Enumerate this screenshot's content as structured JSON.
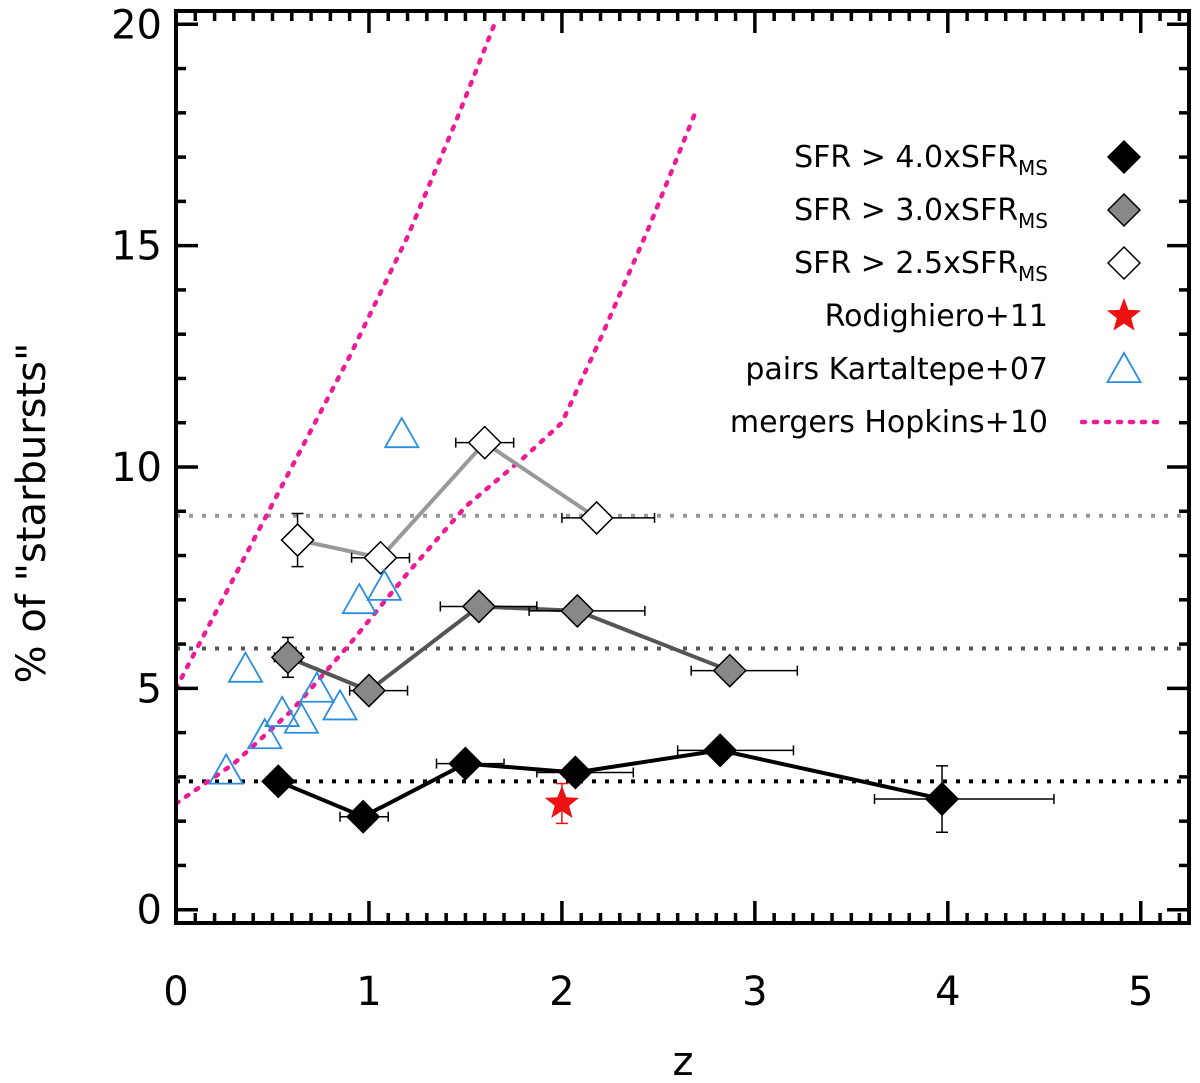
{
  "chart_data": {
    "type": "scatter",
    "xlabel": "z",
    "ylabel": "% of \"starbursts\"",
    "xlim": [
      0,
      5.25
    ],
    "ylim": [
      -0.3,
      20.3
    ],
    "x_ticks": [
      0,
      1,
      2,
      3,
      4,
      5
    ],
    "y_ticks": [
      0,
      5,
      10,
      15,
      20
    ],
    "legend_position": "top-right",
    "reference_lines": [
      {
        "y": 2.9,
        "color": "#000000"
      },
      {
        "y": 5.9,
        "color": "#555555"
      },
      {
        "y": 8.9,
        "color": "#999999"
      }
    ],
    "series": [
      {
        "name": "SFR > 4.0xSFR",
        "name_sub": "MS",
        "marker": "diamond",
        "fill": "#000000",
        "line_color": "#000000",
        "points": [
          {
            "x": 0.53,
            "y": 2.9,
            "xerr": [
              0.0,
              0.0
            ],
            "yerr": [
              0.0,
              0.0
            ]
          },
          {
            "x": 0.97,
            "y": 2.1,
            "xerr": [
              0.12,
              0.13
            ],
            "yerr": [
              0.0,
              0.0
            ]
          },
          {
            "x": 1.5,
            "y": 3.3,
            "xerr": [
              0.15,
              0.2
            ],
            "yerr": [
              0.0,
              0.0
            ]
          },
          {
            "x": 2.07,
            "y": 3.1,
            "xerr": [
              0.2,
              0.3
            ],
            "yerr": [
              0.0,
              0.0
            ]
          },
          {
            "x": 2.82,
            "y": 3.6,
            "xerr": [
              0.22,
              0.38
            ],
            "yerr": [
              0.0,
              0.0
            ]
          },
          {
            "x": 3.97,
            "y": 2.5,
            "xerr": [
              0.35,
              0.58
            ],
            "yerr": [
              0.75,
              0.75
            ]
          }
        ]
      },
      {
        "name": "SFR > 3.0xSFR",
        "name_sub": "MS",
        "marker": "diamond",
        "fill": "#888888",
        "line_color": "#555555",
        "points": [
          {
            "x": 0.58,
            "y": 5.7,
            "xerr": [
              0.07,
              0.07
            ],
            "yerr": [
              0.45,
              0.45
            ]
          },
          {
            "x": 1.0,
            "y": 4.95,
            "xerr": [
              0.1,
              0.2
            ],
            "yerr": [
              0.0,
              0.0
            ]
          },
          {
            "x": 1.57,
            "y": 6.85,
            "xerr": [
              0.2,
              0.3
            ],
            "yerr": [
              0.0,
              0.0
            ]
          },
          {
            "x": 2.08,
            "y": 6.75,
            "xerr": [
              0.25,
              0.35
            ],
            "yerr": [
              0.0,
              0.0
            ]
          },
          {
            "x": 2.87,
            "y": 5.4,
            "xerr": [
              0.2,
              0.35
            ],
            "yerr": [
              0.0,
              0.0
            ]
          }
        ]
      },
      {
        "name": "SFR > 2.5xSFR",
        "name_sub": "MS",
        "marker": "diamond",
        "fill": "#ffffff",
        "line_color": "#999999",
        "points": [
          {
            "x": 0.63,
            "y": 8.35,
            "xerr": [
              0.0,
              0.0
            ],
            "yerr": [
              0.6,
              0.6
            ]
          },
          {
            "x": 1.06,
            "y": 7.95,
            "xerr": [
              0.15,
              0.15
            ],
            "yerr": [
              0.0,
              0.0
            ]
          },
          {
            "x": 1.6,
            "y": 10.55,
            "xerr": [
              0.15,
              0.15
            ],
            "yerr": [
              0.0,
              0.0
            ]
          },
          {
            "x": 2.18,
            "y": 8.85,
            "xerr": [
              0.18,
              0.3
            ],
            "yerr": [
              0.0,
              0.0
            ]
          }
        ]
      },
      {
        "name": "Rodighiero+11",
        "marker": "star",
        "fill": "#ee1111",
        "points": [
          {
            "x": 2.0,
            "y": 2.4,
            "xerr": [
              0.0,
              0.0
            ],
            "yerr": [
              0.45,
              0.45
            ]
          }
        ]
      },
      {
        "name": "pairs Kartaltepe+07",
        "marker": "triangle",
        "fill": "none",
        "stroke": "#2a8ee0",
        "points": [
          {
            "x": 0.26,
            "y": 3.1
          },
          {
            "x": 0.36,
            "y": 5.4
          },
          {
            "x": 0.46,
            "y": 3.9
          },
          {
            "x": 0.55,
            "y": 4.4
          },
          {
            "x": 0.65,
            "y": 4.25
          },
          {
            "x": 0.73,
            "y": 4.95
          },
          {
            "x": 0.85,
            "y": 4.55
          },
          {
            "x": 0.95,
            "y": 6.95
          },
          {
            "x": 1.08,
            "y": 7.25
          },
          {
            "x": 1.17,
            "y": 10.7
          }
        ]
      },
      {
        "name": "mergers Hopkins+10",
        "marker": "dotted-line",
        "stroke": "#ee1a96",
        "lines": [
          [
            {
              "x": 0.0,
              "y": 5.0
            },
            {
              "x": 0.3,
              "y": 7.5
            },
            {
              "x": 0.6,
              "y": 10.0
            },
            {
              "x": 0.9,
              "y": 12.5
            },
            {
              "x": 1.2,
              "y": 15.2
            },
            {
              "x": 1.45,
              "y": 17.8
            },
            {
              "x": 1.65,
              "y": 20.0
            }
          ],
          [
            {
              "x": 0.0,
              "y": 2.4
            },
            {
              "x": 0.3,
              "y": 3.3
            },
            {
              "x": 0.6,
              "y": 4.5
            },
            {
              "x": 0.9,
              "y": 6.0
            },
            {
              "x": 1.2,
              "y": 7.6
            },
            {
              "x": 1.5,
              "y": 9.1
            },
            {
              "x": 1.8,
              "y": 10.2
            },
            {
              "x": 2.0,
              "y": 11.0
            },
            {
              "x": 2.2,
              "y": 12.9
            },
            {
              "x": 2.45,
              "y": 15.4
            },
            {
              "x": 2.7,
              "y": 18.1
            }
          ]
        ]
      }
    ]
  }
}
